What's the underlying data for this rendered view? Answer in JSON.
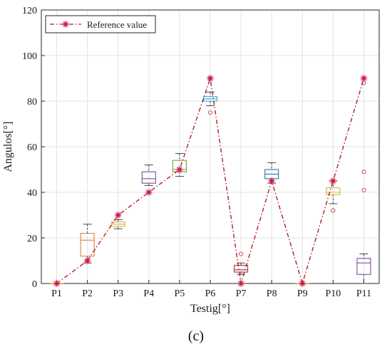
{
  "chart_data": {
    "type": "box",
    "title": "",
    "xlabel": "Testig[°]",
    "ylabel": "Angulos[°]",
    "ylim": [
      0,
      120
    ],
    "yticks": [
      0,
      20,
      40,
      60,
      80,
      100,
      120
    ],
    "grid": true,
    "legend": {
      "position": "top-left",
      "entries": [
        "Reference value"
      ]
    },
    "caption": "(c)",
    "categories": [
      "P1",
      "P2",
      "P3",
      "P4",
      "P5",
      "P6",
      "P7",
      "P8",
      "P9",
      "P10",
      "P11"
    ],
    "reference_values": [
      0,
      10,
      30,
      40,
      50,
      90,
      0,
      45,
      0,
      45,
      90
    ],
    "boxes": [
      {
        "label": "P1",
        "min": 0,
        "q1": 0,
        "median": 0,
        "q3": 0,
        "max": 0,
        "outliers": [],
        "color": "#d99b2b"
      },
      {
        "label": "P2",
        "min": 9,
        "q1": 12,
        "median": 19,
        "q3": 22,
        "max": 26,
        "outliers": [],
        "color": "#d9853b"
      },
      {
        "label": "P3",
        "min": 24,
        "q1": 25,
        "median": 26,
        "q3": 27,
        "max": 28,
        "outliers": [],
        "color": "#d6b23a"
      },
      {
        "label": "P4",
        "min": 43,
        "q1": 44,
        "median": 46,
        "q3": 49,
        "max": 52,
        "outliers": [],
        "color": "#7e4f9c"
      },
      {
        "label": "P5",
        "min": 47,
        "q1": 49,
        "median": 50,
        "q3": 54,
        "max": 57,
        "outliers": [],
        "color": "#78a33a"
      },
      {
        "label": "P6",
        "min": 78,
        "q1": 80,
        "median": 81,
        "q3": 82,
        "max": 84,
        "outliers": [
          75
        ],
        "color": "#3fa9d6"
      },
      {
        "label": "P7",
        "min": 4,
        "q1": 5,
        "median": 6,
        "q3": 8,
        "max": 9,
        "outliers": [
          13
        ],
        "color": "#a8324a"
      },
      {
        "label": "P8",
        "min": 44,
        "q1": 46,
        "median": 48,
        "q3": 50,
        "max": 53,
        "outliers": [],
        "color": "#2f6fb5"
      },
      {
        "label": "P9",
        "min": 0,
        "q1": 0,
        "median": 0,
        "q3": 0,
        "max": 0,
        "outliers": [],
        "color": "#d99b2b"
      },
      {
        "label": "P10",
        "min": 35,
        "q1": 39,
        "median": 40,
        "q3": 42,
        "max": 45,
        "outliers": [
          32
        ],
        "color": "#d6b23a"
      },
      {
        "label": "P11",
        "min": 0,
        "q1": 4,
        "median": 9,
        "q3": 11,
        "max": 13,
        "outliers": [
          41,
          49,
          88
        ],
        "color": "#7e4f9c"
      }
    ],
    "colors": {
      "reference_line": "#b0202a",
      "reference_marker": "#c8182a",
      "grid": "#e3e3e3",
      "axis": "#262626",
      "outlier": "#c84040"
    }
  }
}
